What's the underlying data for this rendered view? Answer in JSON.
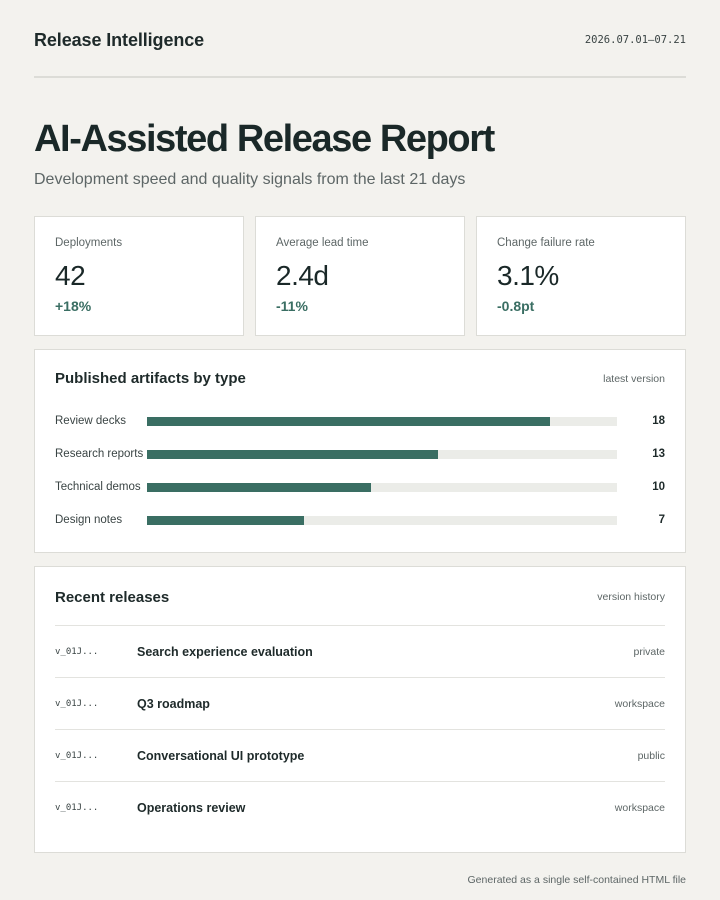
{
  "header": {
    "brand": "Release Intelligence",
    "date_range": "2026.07.01—07.21"
  },
  "hero": {
    "title": "AI-Assisted Release Report",
    "subtitle": "Development speed and quality signals from the last 21 days"
  },
  "kpis": [
    {
      "label": "Deployments",
      "value": "42",
      "delta": "+18%"
    },
    {
      "label": "Average lead time",
      "value": "2.4d",
      "delta": "-11%"
    },
    {
      "label": "Change failure rate",
      "value": "3.1%",
      "delta": "-0.8pt"
    }
  ],
  "artifacts": {
    "title": "Published artifacts by type",
    "note": "latest version",
    "max": 21,
    "accent": "#3a6e63",
    "items": [
      {
        "label": "Review decks",
        "value": 18
      },
      {
        "label": "Research reports",
        "value": 13
      },
      {
        "label": "Technical demos",
        "value": 10
      },
      {
        "label": "Design notes",
        "value": 7
      }
    ]
  },
  "releases": {
    "title": "Recent releases",
    "note": "version history",
    "rows": [
      {
        "id": "v_01J...",
        "name": "Search experience evaluation",
        "scope": "private"
      },
      {
        "id": "v_01J...",
        "name": "Q3 roadmap",
        "scope": "workspace"
      },
      {
        "id": "v_01J...",
        "name": "Conversational UI prototype",
        "scope": "public"
      },
      {
        "id": "v_01J...",
        "name": "Operations review",
        "scope": "workspace"
      }
    ]
  },
  "footer": {
    "text": "Generated as a single self-contained HTML file"
  }
}
